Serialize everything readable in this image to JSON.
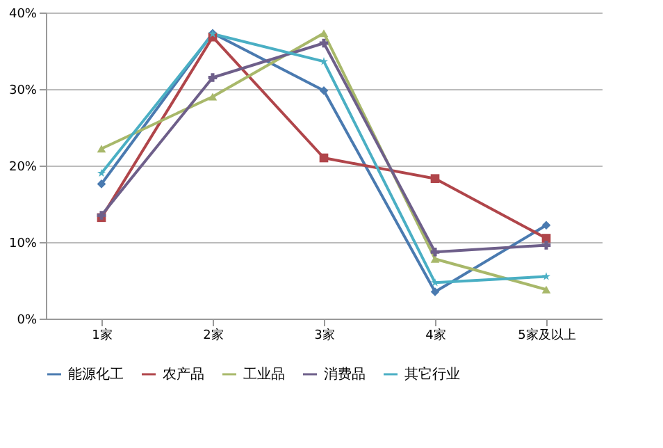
{
  "chart_data": {
    "type": "line",
    "categories": [
      "1家",
      "2家",
      "3家",
      "4家",
      "5家及以上"
    ],
    "series": [
      {
        "name": "能源化工",
        "color": "#4a7ab0",
        "marker": "diamond",
        "values": [
          17.6,
          37.3,
          29.8,
          3.5,
          12.2
        ]
      },
      {
        "name": "农产品",
        "color": "#b0454a",
        "marker": "square",
        "values": [
          13.2,
          36.8,
          21.0,
          18.3,
          10.5
        ]
      },
      {
        "name": "工业品",
        "color": "#a8b86a",
        "marker": "triangle",
        "values": [
          22.2,
          29.0,
          37.3,
          7.8,
          3.8
        ]
      },
      {
        "name": "消费品",
        "color": "#6e5f8a",
        "marker": "cross",
        "values": [
          13.5,
          31.5,
          36.0,
          8.7,
          9.6
        ]
      },
      {
        "name": "其它行业",
        "color": "#4aafc4",
        "marker": "star",
        "values": [
          19.0,
          37.2,
          33.6,
          4.7,
          5.5
        ]
      }
    ],
    "ylim": [
      0,
      40
    ],
    "yticks": [
      {
        "value": 0,
        "label": "0%"
      },
      {
        "value": 10,
        "label": "10%"
      },
      {
        "value": 20,
        "label": "20%"
      },
      {
        "value": 30,
        "label": "30%"
      },
      {
        "value": 40,
        "label": "40%"
      }
    ],
    "grid": "y",
    "legend": "bottom",
    "line_style": "solid"
  }
}
